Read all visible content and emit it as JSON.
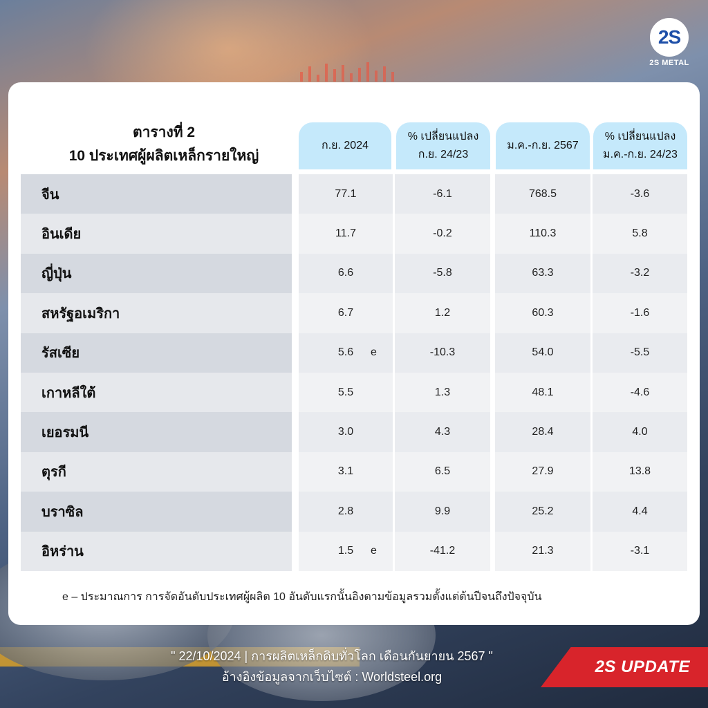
{
  "brand": {
    "logo_mark": "2S",
    "logo_text": "2S METAL"
  },
  "title": {
    "line1": "ตารางที่ 2",
    "line2": "10 ประเทศผู้ผลิตเหล็กรายใหญ่"
  },
  "columns": [
    {
      "line1": "ก.ย. 2024",
      "line2": ""
    },
    {
      "line1": "% เปลี่ยนแปลง",
      "line2": "ก.ย. 24/23"
    },
    {
      "line1": "ม.ค.-ก.ย. 2567",
      "line2": ""
    },
    {
      "line1": "% เปลี่ยนแปลง",
      "line2": "ม.ค.-ก.ย. 24/23"
    }
  ],
  "rows": [
    {
      "country": "จีน",
      "sep2024": "77.1",
      "est": "",
      "chg_sep": "-6.1",
      "jan_sep": "768.5",
      "chg_jan_sep": "-3.6"
    },
    {
      "country": "อินเดีย",
      "sep2024": "11.7",
      "est": "",
      "chg_sep": "-0.2",
      "jan_sep": "110.3",
      "chg_jan_sep": "5.8"
    },
    {
      "country": "ญี่ปุ่น",
      "sep2024": "6.6",
      "est": "",
      "chg_sep": "-5.8",
      "jan_sep": "63.3",
      "chg_jan_sep": "-3.2"
    },
    {
      "country": "สหรัฐอเมริกา",
      "sep2024": "6.7",
      "est": "",
      "chg_sep": "1.2",
      "jan_sep": "60.3",
      "chg_jan_sep": "-1.6"
    },
    {
      "country": "รัสเซีย",
      "sep2024": "5.6",
      "est": "e",
      "chg_sep": "-10.3",
      "jan_sep": "54.0",
      "chg_jan_sep": "-5.5"
    },
    {
      "country": "เกาหลีใต้",
      "sep2024": "5.5",
      "est": "",
      "chg_sep": "1.3",
      "jan_sep": "48.1",
      "chg_jan_sep": "-4.6"
    },
    {
      "country": "เยอรมนี",
      "sep2024": "3.0",
      "est": "",
      "chg_sep": "4.3",
      "jan_sep": "28.4",
      "chg_jan_sep": "4.0"
    },
    {
      "country": "ตุรกี",
      "sep2024": "3.1",
      "est": "",
      "chg_sep": "6.5",
      "jan_sep": "27.9",
      "chg_jan_sep": "13.8"
    },
    {
      "country": "บราซิล",
      "sep2024": "2.8",
      "est": "",
      "chg_sep": "9.9",
      "jan_sep": "25.2",
      "chg_jan_sep": "4.4"
    },
    {
      "country": "อิหร่าน",
      "sep2024": "1.5",
      "est": "e",
      "chg_sep": "-41.2",
      "jan_sep": "21.3",
      "chg_jan_sep": "-3.1"
    }
  ],
  "footnote": "e – ประมาณการ การจัดอันดับประเทศผู้ผลิต 10 อันดับแรกนั้นอิงตามข้อมูลรวมตั้งแต่ต้นปีจนถึงปัจจุบัน",
  "bottom": {
    "line1": "\" 22/10/2024 | การผลิตเหล็กดิบทั่วโลก เดือนกันยายน 2567 \"",
    "line2": "อ้างอิงข้อมูลจากเว็บไซต์ : Worldsteel.org"
  },
  "badge": "2S UPDATE"
}
